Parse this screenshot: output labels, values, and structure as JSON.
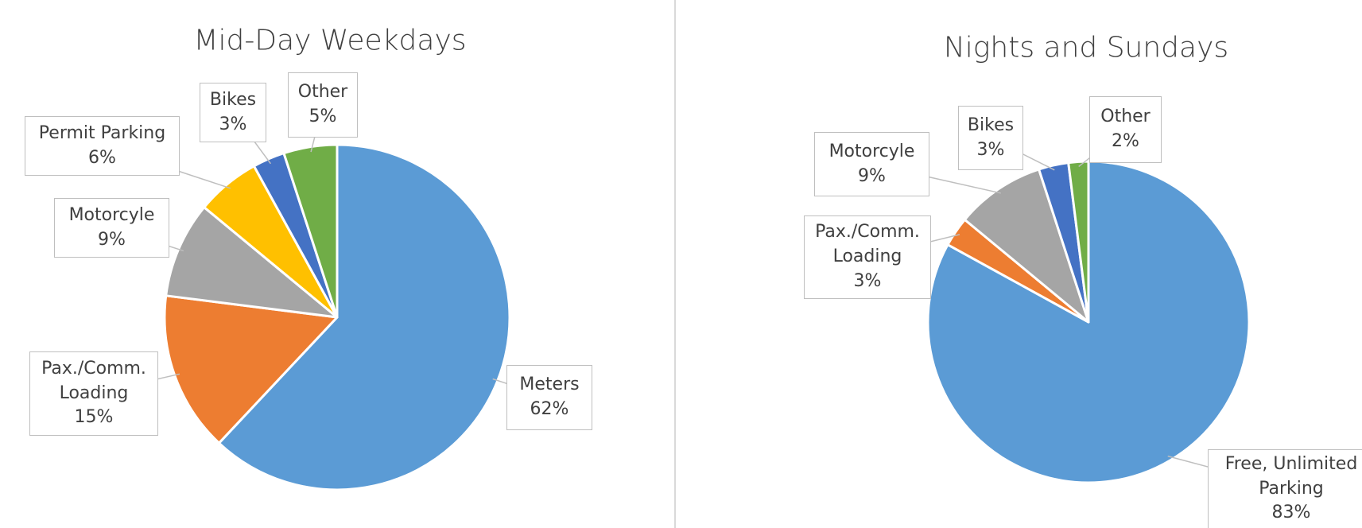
{
  "chart_data": [
    {
      "type": "pie",
      "title": "Mid-Day Weekdays",
      "categories": [
        "Meters",
        "Pax./Comm. Loading",
        "Motorcyle",
        "Permit Parking",
        "Bikes",
        "Other"
      ],
      "values": [
        62,
        15,
        9,
        6,
        3,
        5
      ],
      "value_labels": [
        "62%",
        "15%",
        "9%",
        "6%",
        "3%",
        "5%"
      ],
      "colors": [
        "#5b9bd5",
        "#ed7d31",
        "#a5a5a5",
        "#ffc000",
        "#4472c4",
        "#70ad47"
      ]
    },
    {
      "type": "pie",
      "title": "Nights and Sundays",
      "categories": [
        "Free, Unlimited Parking",
        "Pax./Comm. Loading",
        "Motorcyle",
        "Bikes",
        "Other"
      ],
      "values": [
        83,
        3,
        9,
        3,
        2
      ],
      "value_labels": [
        "83%",
        "3%",
        "9%",
        "3%",
        "2%"
      ],
      "colors": [
        "#5b9bd5",
        "#ed7d31",
        "#a5a5a5",
        "#4472c4",
        "#70ad47"
      ]
    }
  ]
}
